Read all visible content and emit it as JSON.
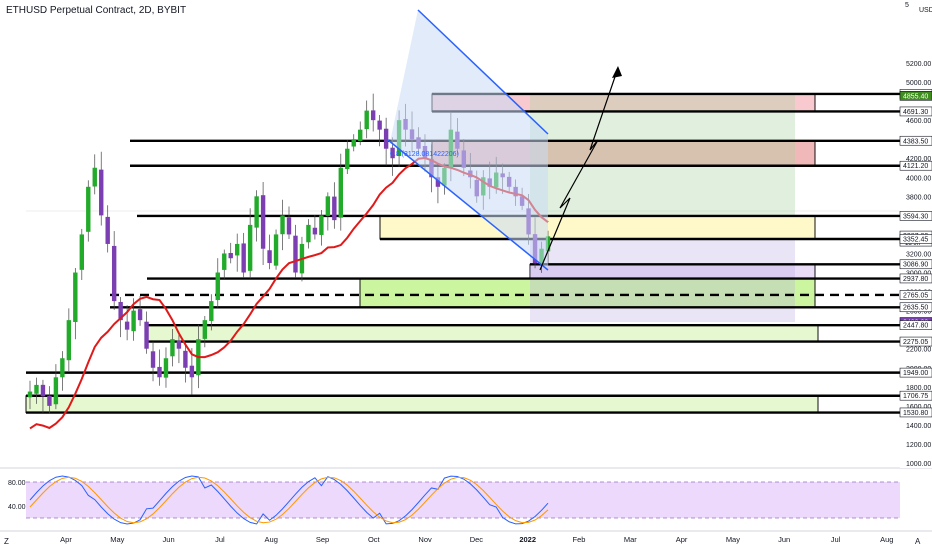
{
  "header": {
    "title": "ETHUSD Perpetual Contract, 2D, BYBIT",
    "currency": "USD",
    "scale_factor": "5"
  },
  "annotations": {
    "fib_label": "0.8 (3128.081422206)"
  },
  "price_axis": {
    "ticks": [
      5200,
      5000,
      4600,
      4400,
      4200,
      4000,
      3800,
      3600,
      3200,
      3000,
      2800,
      2600,
      2200,
      2000,
      1800,
      1600,
      1400,
      1200,
      1000
    ],
    "ymin": 950,
    "ymax": 5300
  },
  "time_axis": {
    "labels": [
      "Apr",
      "May",
      "Jun",
      "Jul",
      "Aug",
      "Sep",
      "Oct",
      "Nov",
      "Dec",
      "2022",
      "Feb",
      "Mar",
      "Apr",
      "May",
      "Jun",
      "Jul",
      "Aug"
    ]
  },
  "level_labels": [
    {
      "value": "4875.00",
      "bg": "#ffffff",
      "fg": "#131722"
    },
    {
      "value": "4855.40",
      "bg": "#3f8c1f",
      "fg": "#ffffff"
    },
    {
      "value": "4691.30",
      "bg": "#ffffff",
      "fg": "#131722"
    },
    {
      "value": "4383.50",
      "bg": "#ffffff",
      "fg": "#131722"
    },
    {
      "value": "4121.20",
      "bg": "#ffffff",
      "fg": "#131722"
    },
    {
      "value": "3594.30",
      "bg": "#ffffff",
      "fg": "#131722"
    },
    {
      "value": "3387.80",
      "bg": "#ffffff",
      "fg": "#131722",
      "sub": "1d 9h"
    },
    {
      "value": "3352.45",
      "bg": "#ffffff",
      "fg": "#131722"
    },
    {
      "value": "3086.90",
      "bg": "#ffffff",
      "fg": "#131722"
    },
    {
      "value": "2937.80",
      "bg": "#ffffff",
      "fg": "#131722"
    },
    {
      "value": "2765.05",
      "bg": "#ffffff",
      "fg": "#131722"
    },
    {
      "value": "2635.50",
      "bg": "#ffffff",
      "fg": "#131722"
    },
    {
      "value": "2480.00",
      "bg": "#7b3fb2",
      "fg": "#ffffff"
    },
    {
      "value": "2447.80",
      "bg": "#ffffff",
      "fg": "#131722"
    },
    {
      "value": "2275.05",
      "bg": "#ffffff",
      "fg": "#131722"
    },
    {
      "value": "1949.00",
      "bg": "#ffffff",
      "fg": "#131722"
    },
    {
      "value": "1706.75",
      "bg": "#ffffff",
      "fg": "#131722"
    },
    {
      "value": "1530.80",
      "bg": "#ffffff",
      "fg": "#131722"
    }
  ],
  "oscillator": {
    "ticks": [
      "80.00",
      "40.00"
    ],
    "upper": 80,
    "lower": 20
  },
  "corner": {
    "left": "Z",
    "right": "A"
  },
  "chart_data": {
    "type": "candlestick",
    "symbol": "ETHUSD Perpetual Contract, 2D, BYBIT",
    "approx_closes": [
      1750,
      1820,
      1700,
      1600,
      1900,
      2100,
      2500,
      3000,
      3400,
      3900,
      4100,
      3600,
      3300,
      2700,
      2500,
      2400,
      2600,
      2500,
      2200,
      2000,
      1900,
      2100,
      2300,
      2200,
      2000,
      1900,
      2300,
      2500,
      2700,
      3000,
      3200,
      3150,
      3300,
      3000,
      3500,
      3800,
      3250,
      3100,
      3400,
      3600,
      3400,
      3000,
      3300,
      3500,
      3400,
      3600,
      3800,
      3550,
      4100,
      4300,
      4400,
      4500,
      4700,
      4600,
      4500,
      4300,
      4200,
      4600,
      4500,
      4400,
      4300,
      4200,
      4000,
      3900,
      4100,
      4500,
      4300,
      4100,
      4000,
      3800,
      4000,
      3900,
      4050,
      4000,
      3900,
      3800,
      3700,
      3400,
      3100,
      3250,
      3380
    ],
    "sma_line": "red moving average",
    "oscillator_type": "stochastic RSI"
  }
}
